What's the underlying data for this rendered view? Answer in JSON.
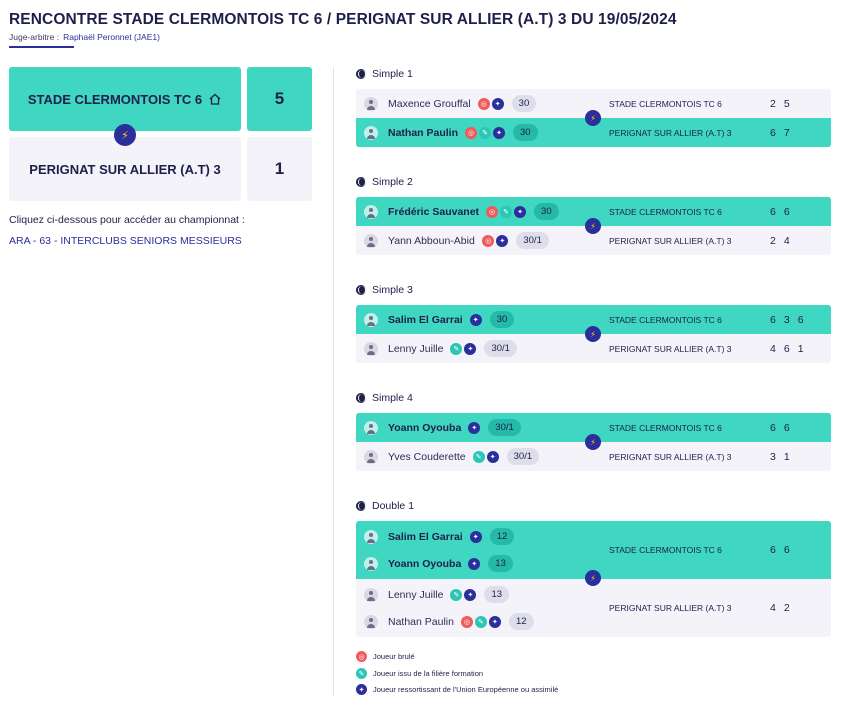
{
  "header": {
    "title": "RENCONTRE STADE CLERMONTOIS TC 6 / PERIGNAT SUR ALLIER (A.T) 3 DU 19/05/2024",
    "referee_label": "Juge-arbitre :",
    "referee_name": "Raphaël Peronnet (JAE1)"
  },
  "summary": {
    "home_team": "STADE CLERMONTOIS TC 6",
    "home_score": "5",
    "away_team": "PERIGNAT SUR ALLIER (A.T) 3",
    "away_score": "1",
    "championship_hint": "Cliquez ci-dessous pour accéder au championnat :",
    "championship_link": "ARA - 63 - INTERCLUBS SENIORS MESSIEURS"
  },
  "matches": [
    {
      "title": "Simple 1",
      "rows": [
        {
          "player": "Maxence Grouffal",
          "badges": [
            "red",
            "blue"
          ],
          "rank": "30",
          "club": "STADE CLERMONTOIS TC 6",
          "scores": [
            "2",
            "5"
          ],
          "winner": false
        },
        {
          "player": "Nathan Paulin",
          "badges": [
            "red",
            "teal",
            "blue"
          ],
          "rank": "30",
          "club": "PERIGNAT SUR ALLIER (A.T) 3",
          "scores": [
            "6",
            "7"
          ],
          "winner": true
        }
      ]
    },
    {
      "title": "Simple 2",
      "rows": [
        {
          "player": "Frédéric Sauvanet",
          "badges": [
            "red",
            "teal",
            "blue"
          ],
          "rank": "30",
          "club": "STADE CLERMONTOIS TC 6",
          "scores": [
            "6",
            "6"
          ],
          "winner": true
        },
        {
          "player": "Yann Abboun-Abid",
          "badges": [
            "red",
            "blue"
          ],
          "rank": "30/1",
          "club": "PERIGNAT SUR ALLIER (A.T) 3",
          "scores": [
            "2",
            "4"
          ],
          "winner": false
        }
      ]
    },
    {
      "title": "Simple 3",
      "rows": [
        {
          "player": "Salim El Garrai",
          "badges": [
            "blue"
          ],
          "rank": "30",
          "club": "STADE CLERMONTOIS TC 6",
          "scores": [
            "6",
            "3",
            "6"
          ],
          "winner": true
        },
        {
          "player": "Lenny Juille",
          "badges": [
            "teal",
            "blue"
          ],
          "rank": "30/1",
          "club": "PERIGNAT SUR ALLIER (A.T) 3",
          "scores": [
            "4",
            "6",
            "1"
          ],
          "winner": false
        }
      ]
    },
    {
      "title": "Simple 4",
      "rows": [
        {
          "player": "Yoann Oyouba",
          "badges": [
            "blue"
          ],
          "rank": "30/1",
          "club": "STADE CLERMONTOIS TC 6",
          "scores": [
            "6",
            "6"
          ],
          "winner": true
        },
        {
          "player": "Yves Couderette",
          "badges": [
            "teal",
            "blue"
          ],
          "rank": "30/1",
          "club": "PERIGNAT SUR ALLIER (A.T) 3",
          "scores": [
            "3",
            "1"
          ],
          "winner": false
        }
      ]
    }
  ],
  "double": {
    "title": "Double 1",
    "teams": [
      {
        "club": "STADE CLERMONTOIS TC 6",
        "scores": [
          "6",
          "6"
        ],
        "winner": true,
        "players": [
          {
            "player": "Salim El Garrai",
            "badges": [
              "blue"
            ],
            "rank": "12"
          },
          {
            "player": "Yoann Oyouba",
            "badges": [
              "blue"
            ],
            "rank": "13"
          }
        ]
      },
      {
        "club": "PERIGNAT SUR ALLIER (A.T) 3",
        "scores": [
          "4",
          "2"
        ],
        "winner": false,
        "players": [
          {
            "player": "Lenny Juille",
            "badges": [
              "teal",
              "blue"
            ],
            "rank": "13"
          },
          {
            "player": "Nathan Paulin",
            "badges": [
              "red",
              "teal",
              "blue"
            ],
            "rank": "12"
          }
        ]
      }
    ]
  },
  "legend": {
    "burned": "Joueur brulé",
    "formation": "Joueur issu de la filière formation",
    "eu": "Joueur ressortissant de l'Union Européenne ou assimilé"
  },
  "colors": {
    "accent": "#3fd6c2",
    "navy": "#2b2f9c",
    "burned": "#ef5a5a",
    "formation": "#2cc7b4"
  }
}
